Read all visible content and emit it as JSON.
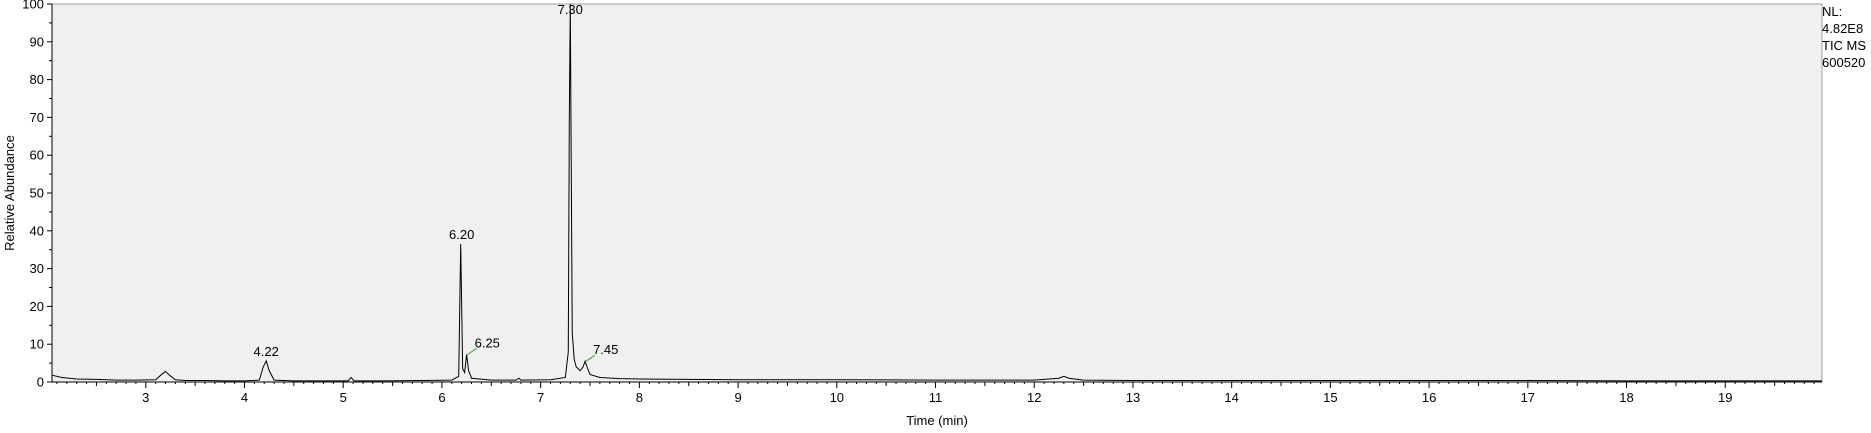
{
  "chart_data": {
    "type": "line",
    "title": "",
    "xlabel": "Time (min)",
    "ylabel": "Relative Abundance",
    "xlim": [
      2.05,
      19.98
    ],
    "ylim": [
      0,
      100
    ],
    "xticks": [
      3,
      4,
      5,
      6,
      7,
      8,
      9,
      10,
      11,
      12,
      13,
      14,
      15,
      16,
      17,
      18,
      19
    ],
    "yticks": [
      0,
      10,
      20,
      30,
      40,
      50,
      60,
      70,
      80,
      90,
      100
    ],
    "grid": false,
    "plot_background": "#f0f0f0",
    "trace_color": "#000000",
    "label_connector_color": "#3aa03a",
    "series": [
      {
        "x": [
          2.05,
          2.15,
          2.3,
          2.5,
          2.7,
          2.9,
          3.1,
          3.16,
          3.2,
          3.24,
          3.3,
          3.4,
          3.6,
          3.8,
          4.0,
          4.15,
          4.19,
          4.22,
          4.25,
          4.3,
          4.5,
          4.8,
          5.05,
          5.08,
          5.11,
          5.4,
          5.8,
          6.1,
          6.17,
          6.19,
          6.2,
          6.21,
          6.23,
          6.25,
          6.27,
          6.3,
          6.5,
          6.75,
          6.78,
          6.8,
          7.1,
          7.25,
          7.28,
          7.29,
          7.3,
          7.31,
          7.32,
          7.34,
          7.36,
          7.4,
          7.43,
          7.45,
          7.47,
          7.5,
          7.6,
          7.8,
          8.0,
          8.5,
          9.0,
          10.0,
          11.0,
          12.0,
          12.25,
          12.3,
          12.35,
          12.5,
          13.0,
          14.0,
          15.0,
          16.0,
          17.0,
          18.0,
          19.0,
          19.98
        ],
        "y": [
          1.8,
          1.2,
          0.8,
          0.7,
          0.5,
          0.5,
          0.6,
          2.0,
          2.8,
          1.8,
          0.6,
          0.4,
          0.4,
          0.3,
          0.3,
          0.5,
          4.0,
          5.6,
          3.0,
          0.5,
          0.3,
          0.3,
          0.3,
          1.2,
          0.3,
          0.3,
          0.4,
          0.5,
          1.5,
          36.5,
          20.0,
          3.5,
          2.5,
          7.3,
          3.0,
          1.0,
          0.5,
          0.5,
          1.0,
          0.5,
          0.6,
          1.2,
          8.0,
          68.0,
          100.0,
          57.0,
          13.0,
          6.0,
          4.0,
          3.0,
          4.0,
          5.5,
          4.0,
          2.0,
          1.2,
          0.9,
          0.8,
          0.7,
          0.6,
          0.6,
          0.5,
          0.5,
          1.0,
          1.5,
          1.0,
          0.5,
          0.4,
          0.4,
          0.4,
          0.4,
          0.4,
          0.3,
          0.3,
          0.3
        ]
      }
    ],
    "annotations": [
      {
        "text": "4.22",
        "x": 4.22,
        "y": 5.6
      },
      {
        "text": "6.20",
        "x": 6.2,
        "y": 36.5
      },
      {
        "text": "6.25",
        "x": 6.25,
        "y": 7.3,
        "offset": true
      },
      {
        "text": "7.30",
        "x": 7.3,
        "y": 100.0
      },
      {
        "text": "7.45",
        "x": 7.45,
        "y": 5.5,
        "offset": true
      }
    ]
  },
  "info_box": {
    "lines": [
      "NL:",
      "4.82E8",
      "TIC  MS",
      "600520"
    ]
  }
}
